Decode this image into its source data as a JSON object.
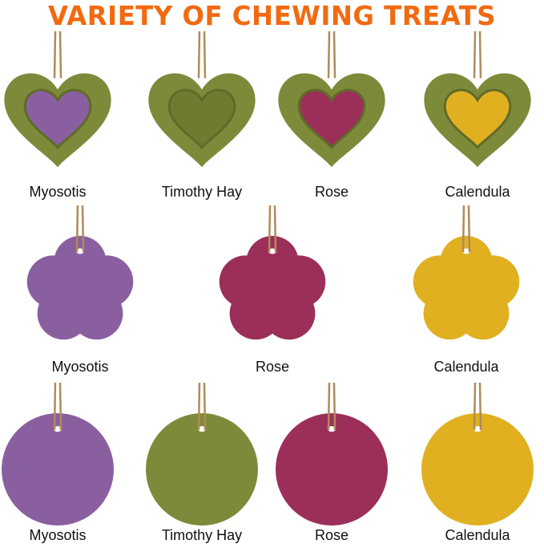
{
  "title": "VARIETY OF CHEWING TREATS",
  "colors": {
    "title": "#f26a10",
    "hay": "#7d8a3a",
    "myosotis": "#8a5fa0",
    "rose": "#9c2f5a",
    "calendula": "#e0b020",
    "twine": "#b08a5a"
  },
  "rows": [
    {
      "shape": "heart",
      "items": [
        {
          "label": "Myosotis",
          "fill": "myosotis"
        },
        {
          "label": "Timothy Hay",
          "fill": "hay"
        },
        {
          "label": "Rose",
          "fill": "rose"
        },
        {
          "label": "Calendula",
          "fill": "calendula"
        }
      ]
    },
    {
      "shape": "flower",
      "items": [
        {
          "label": "Myosotis",
          "fill": "myosotis"
        },
        {
          "label": "Rose",
          "fill": "rose"
        },
        {
          "label": "Calendula",
          "fill": "calendula"
        }
      ]
    },
    {
      "shape": "circle",
      "items": [
        {
          "label": "Myosotis",
          "fill": "myosotis"
        },
        {
          "label": "Timothy Hay",
          "fill": "hay"
        },
        {
          "label": "Rose",
          "fill": "rose"
        },
        {
          "label": "Calendula",
          "fill": "calendula"
        }
      ]
    }
  ]
}
